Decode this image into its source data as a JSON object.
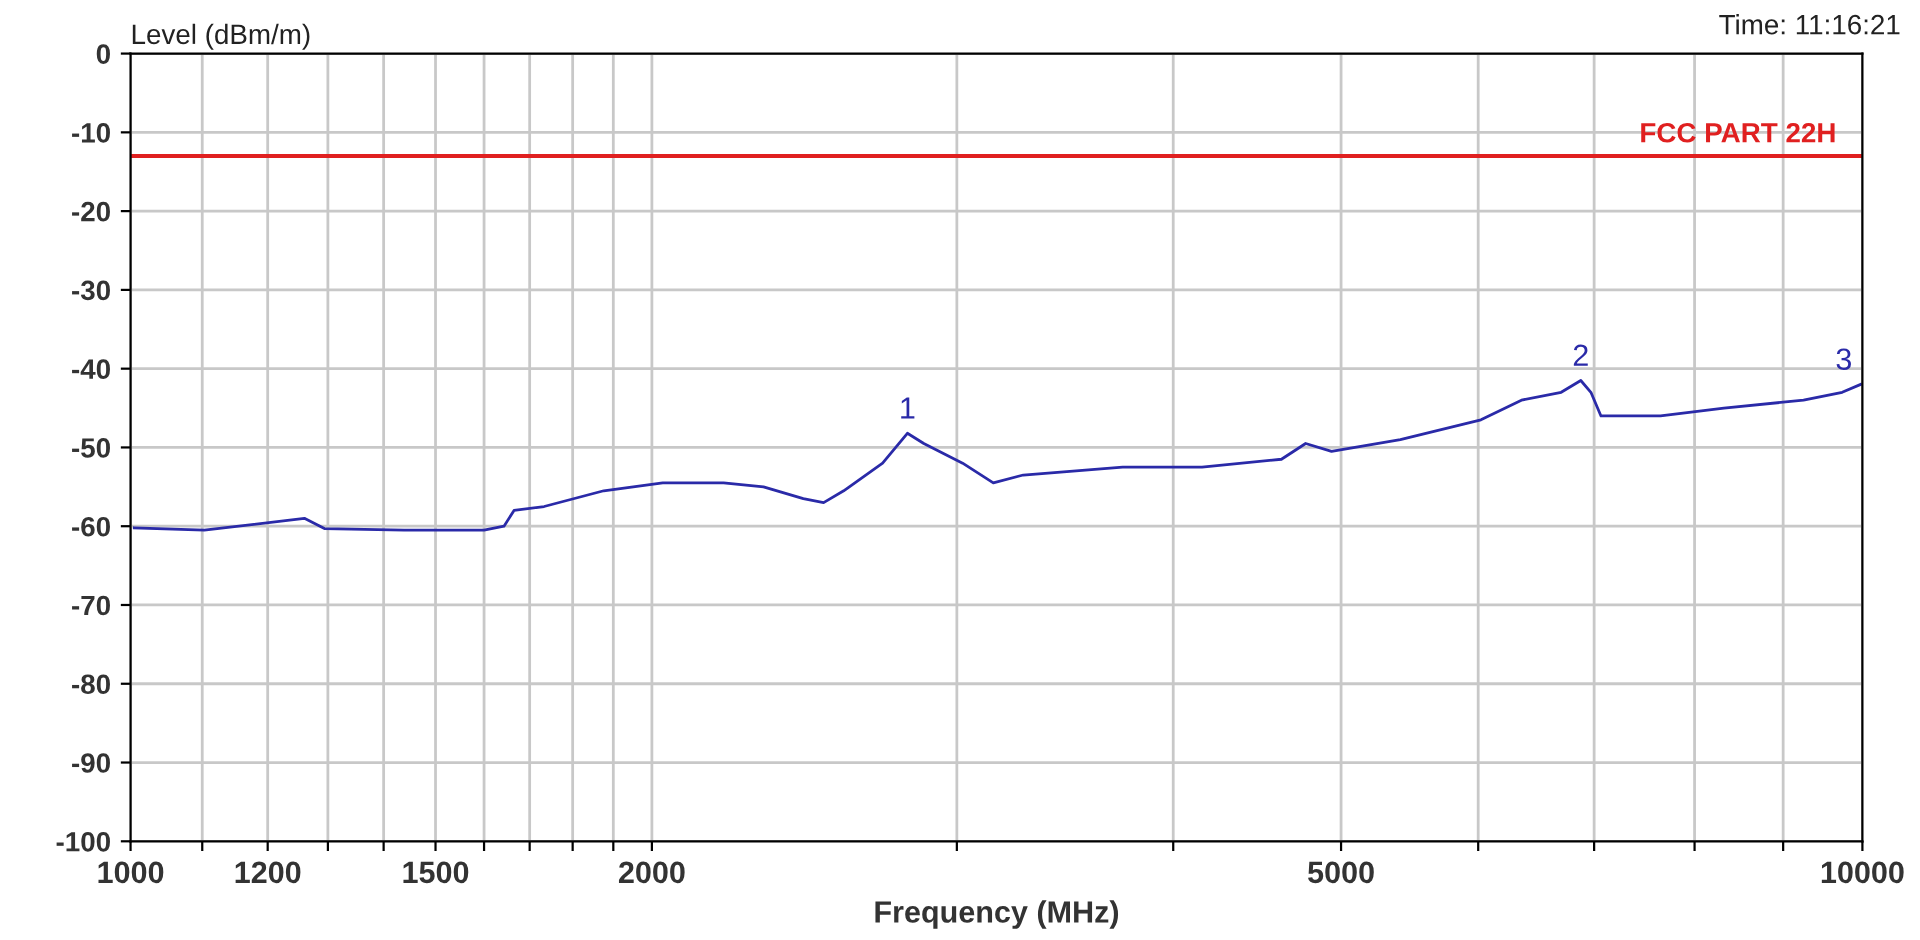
{
  "chart_data": {
    "type": "line",
    "xlabel": "Frequency (MHz)",
    "ylabel": "Level (dBm/m)",
    "log": "x",
    "grid": true,
    "marker": "none",
    "line_style": "solid",
    "xlim": [
      1000,
      10000
    ],
    "ylim": [
      -100,
      0
    ],
    "xticks": [
      1000,
      {
        "value": 1100,
        "label": null
      },
      1200,
      {
        "value": 1300,
        "label": null
      },
      {
        "value": 1400,
        "label": null
      },
      1500,
      {
        "value": 1600,
        "label": null
      },
      {
        "value": 1700,
        "label": null
      },
      {
        "value": 1800,
        "label": null
      },
      {
        "value": 1900,
        "label": null
      },
      2000,
      {
        "value": 3000,
        "label": null
      },
      {
        "value": 4000,
        "label": null
      },
      5000,
      {
        "value": 6000,
        "label": null
      },
      {
        "value": 7000,
        "label": null
      },
      {
        "value": 8000,
        "label": null
      },
      {
        "value": 9000,
        "label": null
      },
      10000
    ],
    "yticks": [
      0,
      -10,
      -20,
      -30,
      -40,
      -50,
      -60,
      -70,
      -80,
      -90,
      -100
    ],
    "series": [
      {
        "color": "#2a2aa8",
        "x": [
          1005,
          1103,
          1260,
          1294,
          1439,
          1600,
          1643,
          1665,
          1733,
          1876,
          2029,
          2200,
          2320,
          2446,
          2513,
          2581,
          2718,
          2809,
          2871,
          3023,
          3149,
          3277,
          3740,
          4156,
          4619,
          4770,
          4937,
          5410,
          6022,
          6355,
          6700,
          6877,
          6970,
          7064,
          7646,
          8318,
          9247,
          9735,
          9977
        ],
        "values": [
          -60.2,
          -60.5,
          -59,
          -60.3,
          -60.5,
          -60.5,
          -60,
          -58,
          -57.5,
          -55.5,
          -54.5,
          -54.5,
          -55,
          -56.5,
          -57,
          -55.5,
          -52,
          -48.2,
          -49.5,
          -52,
          -54.5,
          -53.5,
          -52.5,
          -52.5,
          -51.5,
          -49.5,
          -50.5,
          -49,
          -46.5,
          -44,
          -43,
          -41.5,
          -43,
          -46,
          -46,
          -45,
          -44,
          -43,
          -42
        ]
      }
    ],
    "ref_lines": [
      {
        "axis": "y",
        "value": -13,
        "label": "FCC PART 22H",
        "color": "#e02020"
      }
    ],
    "annotations": [
      {
        "text": "1",
        "x": 2809,
        "y": -48.2
      },
      {
        "text": "2",
        "x": 6877,
        "y": -41.5
      },
      {
        "text": "3",
        "x": 9977,
        "y": -42
      },
      "Time: 11:16:21"
    ]
  }
}
